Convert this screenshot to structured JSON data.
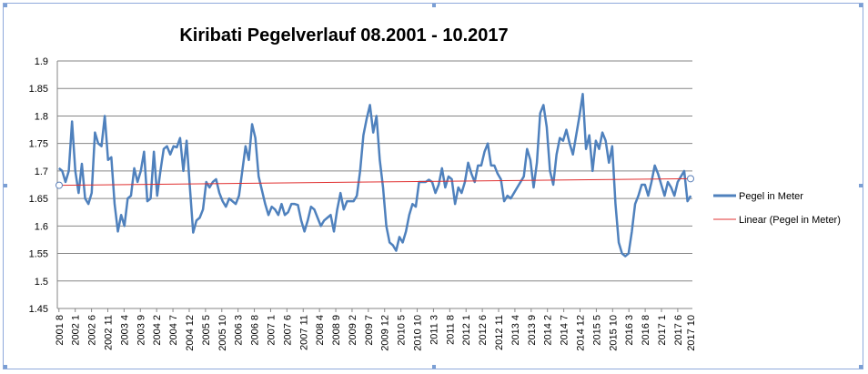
{
  "chart_data": {
    "type": "line",
    "title": "Kiribati Pegelverlauf 08.2001 - 10.2017",
    "xlabel": "",
    "ylabel": "",
    "ylim": [
      1.45,
      1.9
    ],
    "yticks": [
      "1.45",
      "1.5",
      "1.55",
      "1.6",
      "1.65",
      "1.7",
      "1.75",
      "1.8",
      "1.85",
      "1.9"
    ],
    "grid": true,
    "legend_position": "right",
    "x_tick_labels": [
      "2001 8",
      "2002 1",
      "2002 6",
      "2002 11",
      "2003 4",
      "2003 9",
      "2004 2",
      "2004 7",
      "2004 12",
      "2005 5",
      "2005 10",
      "2006 3",
      "2006 8",
      "2007 1",
      "2007 6",
      "2007 11",
      "2008 4",
      "2008 9",
      "2009 2",
      "2009 7",
      "2009 12",
      "2010 5",
      "2010 10",
      "2011 3",
      "2011 8",
      "2012 1",
      "2012 6",
      "2012 11",
      "2013 4",
      "2013 9",
      "2014 2",
      "2014 7",
      "2014 12",
      "2015 5",
      "2015 10",
      "2016 3",
      "2016 8",
      "2017 1",
      "2017 6"
    ],
    "x_start": "2001-08",
    "x_end": "2017-10",
    "series": [
      {
        "name": "Pegel in Meter",
        "color": "#4f81bd",
        "values": [
          1.705,
          1.7,
          1.68,
          1.7,
          1.79,
          1.7,
          1.66,
          1.713,
          1.65,
          1.64,
          1.66,
          1.77,
          1.75,
          1.745,
          1.8,
          1.72,
          1.725,
          1.64,
          1.59,
          1.62,
          1.6,
          1.65,
          1.655,
          1.705,
          1.68,
          1.7,
          1.735,
          1.645,
          1.65,
          1.735,
          1.655,
          1.7,
          1.74,
          1.745,
          1.73,
          1.745,
          1.743,
          1.76,
          1.7,
          1.755,
          1.67,
          1.588,
          1.61,
          1.615,
          1.63,
          1.68,
          1.67,
          1.68,
          1.685,
          1.66,
          1.645,
          1.635,
          1.65,
          1.645,
          1.64,
          1.655,
          1.7,
          1.745,
          1.72,
          1.785,
          1.76,
          1.69,
          1.665,
          1.64,
          1.62,
          1.635,
          1.63,
          1.62,
          1.64,
          1.62,
          1.625,
          1.64,
          1.64,
          1.638,
          1.61,
          1.59,
          1.61,
          1.635,
          1.63,
          1.615,
          1.6,
          1.61,
          1.615,
          1.62,
          1.59,
          1.63,
          1.66,
          1.63,
          1.645,
          1.645,
          1.645,
          1.655,
          1.7,
          1.765,
          1.795,
          1.82,
          1.77,
          1.8,
          1.72,
          1.67,
          1.6,
          1.57,
          1.565,
          1.555,
          1.58,
          1.57,
          1.59,
          1.62,
          1.64,
          1.635,
          1.68,
          1.68,
          1.68,
          1.684,
          1.68,
          1.66,
          1.675,
          1.705,
          1.67,
          1.69,
          1.685,
          1.64,
          1.67,
          1.66,
          1.68,
          1.715,
          1.695,
          1.68,
          1.71,
          1.71,
          1.735,
          1.75,
          1.71,
          1.71,
          1.695,
          1.685,
          1.645,
          1.655,
          1.65,
          1.66,
          1.67,
          1.68,
          1.69,
          1.74,
          1.72,
          1.67,
          1.715,
          1.805,
          1.82,
          1.78,
          1.7,
          1.675,
          1.73,
          1.76,
          1.755,
          1.775,
          1.75,
          1.73,
          1.765,
          1.8,
          1.84,
          1.74,
          1.765,
          1.7,
          1.755,
          1.74,
          1.77,
          1.755,
          1.715,
          1.745,
          1.64,
          1.57,
          1.55,
          1.545,
          1.55,
          1.59,
          1.64,
          1.655,
          1.675,
          1.675,
          1.655,
          1.68,
          1.71,
          1.695,
          1.675,
          1.655,
          1.68,
          1.67,
          1.655,
          1.68,
          1.69,
          1.7,
          1.645,
          1.655
        ]
      },
      {
        "name": "Linear (Pegel in Meter)",
        "color": "#e03030",
        "trend": [
          1.674,
          1.686
        ]
      }
    ]
  }
}
